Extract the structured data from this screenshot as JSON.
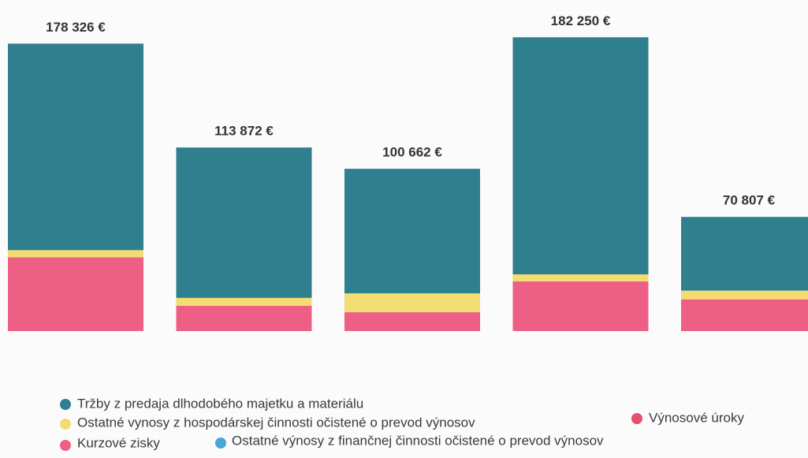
{
  "chart_data": {
    "type": "stacked_bar",
    "categories": [
      null,
      null,
      null,
      null,
      null
    ],
    "totals": [
      178326,
      113872,
      100662,
      182250,
      70807
    ],
    "total_labels": [
      "178 326 €",
      "113 872 €",
      "100 662 €",
      "182 250 €",
      "70 807 €"
    ],
    "series": [
      {
        "name": "Tržby z predaja dlhodobého majetku a materiálu",
        "color": "#2f7f8e",
        "values": [
          128126,
          93272,
          77262,
          147050,
          45707
        ]
      },
      {
        "name": "Ostatné vynosy z hospodárskej činnosti očistené o prevod výnosov",
        "color": "#f3dc72",
        "values": [
          4400,
          4900,
          11700,
          4400,
          5400
        ]
      },
      {
        "name": "Výnosové úroky",
        "color": "#e5506a",
        "values": [
          0,
          0,
          0,
          0,
          0
        ]
      },
      {
        "name": "Kurzové zisky",
        "color": "#ee5f86",
        "values": [
          45800,
          15700,
          11700,
          30800,
          19700
        ]
      },
      {
        "name": "Ostatné výnosy z finančnej činnosti očistené o prevod výnosov",
        "color": "#4aa6d9",
        "values": [
          0,
          0,
          0,
          0,
          0
        ]
      }
    ]
  }
}
